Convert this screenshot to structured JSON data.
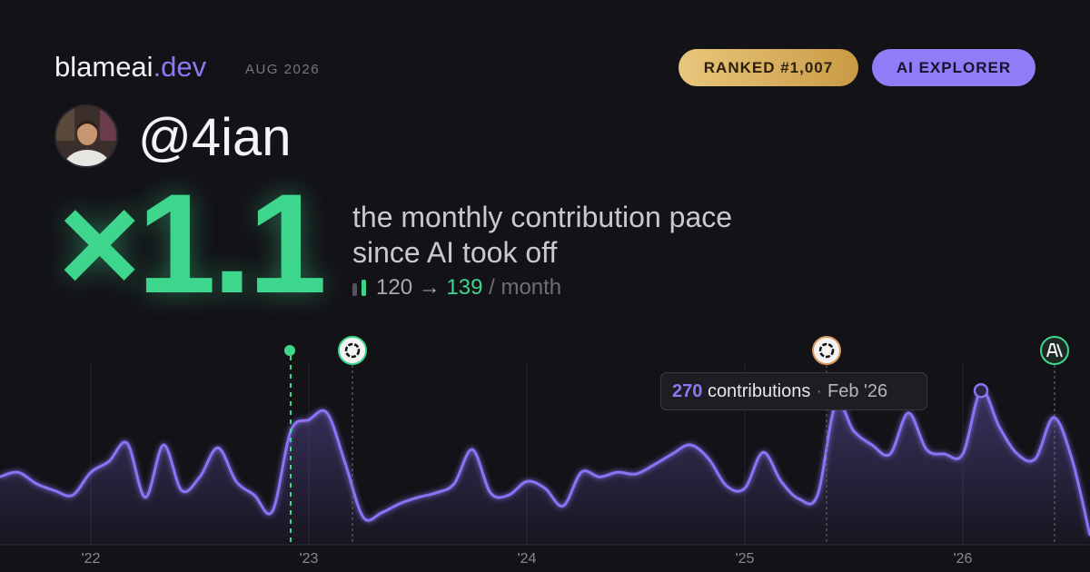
{
  "header": {
    "brand": "blameai",
    "brand_tld": ".dev",
    "date": "AUG 2026",
    "rank": "RANKED #1,007",
    "tier": "AI EXPLORER"
  },
  "profile": {
    "handle": "@4ian"
  },
  "stats": {
    "multiplier": "×1.1",
    "caption": "the monthly contribution pace since AI took off",
    "before": "120",
    "arrow": "→",
    "after": "139",
    "unit": "/ month"
  },
  "tooltip": {
    "unit": "contributions",
    "separator": "·",
    "month": "Feb '26"
  },
  "chart_data": {
    "type": "area",
    "color": "#8a73f5",
    "categories": [
      null,
      null,
      null,
      null,
      null,
      "'22",
      null,
      null,
      null,
      null,
      null,
      null,
      null,
      null,
      null,
      null,
      null,
      "'23",
      null,
      null,
      null,
      null,
      null,
      null,
      null,
      null,
      null,
      null,
      null,
      "'24",
      null,
      null,
      null,
      null,
      null,
      null,
      null,
      null,
      null,
      null,
      null,
      "'25",
      null,
      null,
      null,
      null,
      null,
      null,
      null,
      null,
      null,
      null,
      null,
      "'26",
      null,
      null,
      null,
      null,
      null,
      null,
      null
    ],
    "values": [
      119,
      127,
      107,
      95,
      87,
      127,
      146,
      178,
      83,
      175,
      95,
      119,
      170,
      111,
      87,
      59,
      199,
      219,
      231,
      143,
      48,
      56,
      72,
      83,
      91,
      107,
      167,
      91,
      87,
      111,
      99,
      68,
      127,
      119,
      127,
      124,
      140,
      159,
      175,
      151,
      103,
      99,
      162,
      111,
      80,
      87,
      246,
      199,
      175,
      159,
      231,
      167,
      159,
      159,
      270,
      207,
      159,
      151,
      223,
      151,
      16
    ],
    "ylim": [
      0,
      350
    ]
  }
}
